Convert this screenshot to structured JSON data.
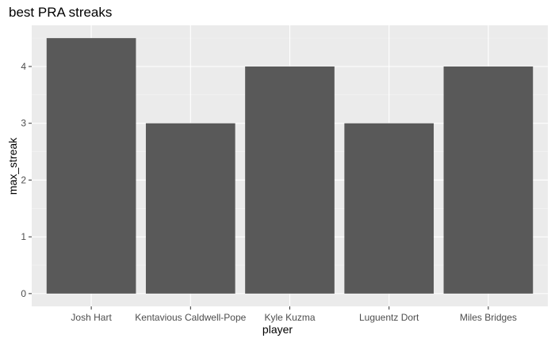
{
  "chart_data": {
    "type": "bar",
    "title": "best PRA streaks",
    "xlabel": "player",
    "ylabel": "max_streak",
    "categories": [
      "Josh Hart",
      "Kentavious Caldwell-Pope",
      "Kyle Kuzma",
      "Luguentz Dort",
      "Miles Bridges"
    ],
    "values": [
      4.5,
      3,
      4,
      3,
      4
    ],
    "yticks": [
      0,
      1,
      2,
      3,
      4
    ],
    "ylim": [
      -0.225,
      4.725
    ],
    "grid": true,
    "colors": {
      "bar": "#595959",
      "panel": "#ebebeb",
      "grid_major": "#ffffff",
      "grid_minor": "#f5f5f5",
      "tick_text": "#4d4d4d"
    }
  }
}
